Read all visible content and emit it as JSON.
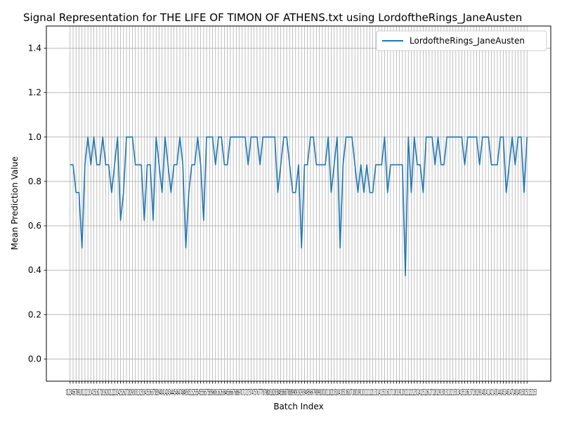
{
  "chart_data": {
    "type": "line",
    "title": "Signal Representation for THE LIFE OF TIMON OF ATHENS.txt using LordoftheRings_JaneAusten",
    "xlabel": "Batch Index",
    "ylabel": "Mean Prediction Value",
    "ylim": [
      -0.1,
      1.5
    ],
    "yticks": [
      0.0,
      0.2,
      0.4,
      0.6,
      0.8,
      1.0,
      1.2,
      1.4
    ],
    "ytick_labels": [
      "0.0",
      "0.2",
      "0.4",
      "0.6",
      "0.8",
      "1.0",
      "1.2",
      "1.4"
    ],
    "xtick_labels_text": "0123456789101112131415161718192021222324252627282930313233343536373839404142434445464748495051525354555657585960616263646566676869707172737475767778798081828384858687888990919293949596979899100101102103104105106107108109110111112113114115116117118119120121122123124125126127128129130131132133134135136137138139140141142143144145146147148149150151152153",
    "xlim": [
      -8,
      162
    ],
    "grid": true,
    "legend_position": "top-right",
    "series": [
      {
        "name": "LordoftheRings_JaneAusten",
        "color": "#1f77b4",
        "x_start": 0,
        "values": [
          0.875,
          0.875,
          0.75,
          0.75,
          0.5,
          0.875,
          1.0,
          0.875,
          1.0,
          0.875,
          0.875,
          1.0,
          0.875,
          0.875,
          0.75,
          0.875,
          1.0,
          0.625,
          0.75,
          1.0,
          1.0,
          1.0,
          0.875,
          0.875,
          0.875,
          0.625,
          0.875,
          0.875,
          0.625,
          1.0,
          0.875,
          0.75,
          1.0,
          0.875,
          0.75,
          0.875,
          0.875,
          1.0,
          0.875,
          0.5,
          0.75,
          0.875,
          0.875,
          1.0,
          0.875,
          0.625,
          1.0,
          1.0,
          1.0,
          0.875,
          1.0,
          1.0,
          0.875,
          0.875,
          1.0,
          1.0,
          1.0,
          1.0,
          1.0,
          1.0,
          0.875,
          1.0,
          1.0,
          1.0,
          0.875,
          1.0,
          1.0,
          1.0,
          1.0,
          1.0,
          0.75,
          0.875,
          1.0,
          1.0,
          0.875,
          0.75,
          0.75,
          0.875,
          0.5,
          0.875,
          0.875,
          1.0,
          1.0,
          0.875,
          0.875,
          0.875,
          0.875,
          1.0,
          0.75,
          0.875,
          1.0,
          0.5,
          0.875,
          1.0,
          1.0,
          1.0,
          0.875,
          0.75,
          0.875,
          0.75,
          0.875,
          0.75,
          0.75,
          0.875,
          0.875,
          0.875,
          1.0,
          0.75,
          0.875,
          0.875,
          0.875,
          0.875,
          0.875,
          0.375,
          1.0,
          0.75,
          1.0,
          0.875,
          0.875,
          0.75,
          1.0,
          1.0,
          1.0,
          0.875,
          1.0,
          0.875,
          0.875,
          1.0,
          1.0,
          1.0,
          1.0,
          1.0,
          1.0,
          0.875,
          1.0,
          1.0,
          1.0,
          1.0,
          0.875,
          1.0,
          1.0,
          1.0,
          0.875,
          0.875,
          0.875,
          1.0,
          1.0,
          0.75,
          0.875,
          1.0,
          0.875,
          1.0,
          1.0,
          0.75,
          1.0
        ]
      }
    ]
  }
}
